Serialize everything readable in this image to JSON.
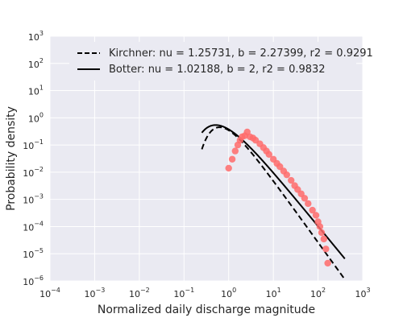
{
  "chart_data": {
    "type": "scatter",
    "xlabel": "Normalized daily discharge magnitude",
    "ylabel": "Probability density",
    "x_scale": "log",
    "y_scale": "log",
    "xlim": [
      0.0001,
      1000
    ],
    "ylim": [
      1e-06,
      1000
    ],
    "x_tick_exponents": [
      -4,
      -3,
      -2,
      -1,
      0,
      1,
      2,
      3
    ],
    "y_tick_exponents": [
      -6,
      -5,
      -4,
      -3,
      -2,
      -1,
      0,
      1,
      2,
      3
    ],
    "tick_base": "10",
    "grid": true,
    "legend_position": "top",
    "colors": {
      "background": "#eaeaf2",
      "grid": "#ffffff",
      "points": "#ff6b6b",
      "lines": "#000000"
    },
    "series": [
      {
        "name": "Kirchner: nu = 1.25731, b = 2.27399, r2 = 0.9291",
        "style": "dashed",
        "model": "kirchner",
        "nu": 1.25731,
        "b": 2.27399
      },
      {
        "name": "Botter: nu = 1.02188, b = 2, r2 = 0.9832",
        "style": "solid",
        "model": "botter",
        "nu": 1.02188,
        "b": 2
      }
    ],
    "points": [
      {
        "x": 1.0,
        "y": 0.014
      },
      {
        "x": 1.2,
        "y": 0.03
      },
      {
        "x": 1.4,
        "y": 0.06
      },
      {
        "x": 1.6,
        "y": 0.1
      },
      {
        "x": 1.8,
        "y": 0.15
      },
      {
        "x": 2.0,
        "y": 0.2
      },
      {
        "x": 2.3,
        "y": 0.22
      },
      {
        "x": 2.6,
        "y": 0.3
      },
      {
        "x": 3.0,
        "y": 0.2
      },
      {
        "x": 3.5,
        "y": 0.18
      },
      {
        "x": 4.0,
        "y": 0.15
      },
      {
        "x": 5.0,
        "y": 0.11
      },
      {
        "x": 6.0,
        "y": 0.08
      },
      {
        "x": 7.0,
        "y": 0.06
      },
      {
        "x": 8.0,
        "y": 0.045
      },
      {
        "x": 10.0,
        "y": 0.03
      },
      {
        "x": 12.0,
        "y": 0.021
      },
      {
        "x": 14.0,
        "y": 0.016
      },
      {
        "x": 17.0,
        "y": 0.011
      },
      {
        "x": 20.0,
        "y": 0.008
      },
      {
        "x": 25.0,
        "y": 0.005
      },
      {
        "x": 30.0,
        "y": 0.0032
      },
      {
        "x": 35.0,
        "y": 0.0023
      },
      {
        "x": 42.0,
        "y": 0.0016
      },
      {
        "x": 50.0,
        "y": 0.0011
      },
      {
        "x": 60.0,
        "y": 0.0007
      },
      {
        "x": 75.0,
        "y": 0.0004
      },
      {
        "x": 90.0,
        "y": 0.00026
      },
      {
        "x": 100.0,
        "y": 0.00015
      },
      {
        "x": 110.0,
        "y": 0.0001
      },
      {
        "x": 120.0,
        "y": 6e-05
      },
      {
        "x": 135.0,
        "y": 3.5e-05
      },
      {
        "x": 150.0,
        "y": 1.5e-05
      },
      {
        "x": 165.0,
        "y": 4.5e-06
      }
    ]
  }
}
